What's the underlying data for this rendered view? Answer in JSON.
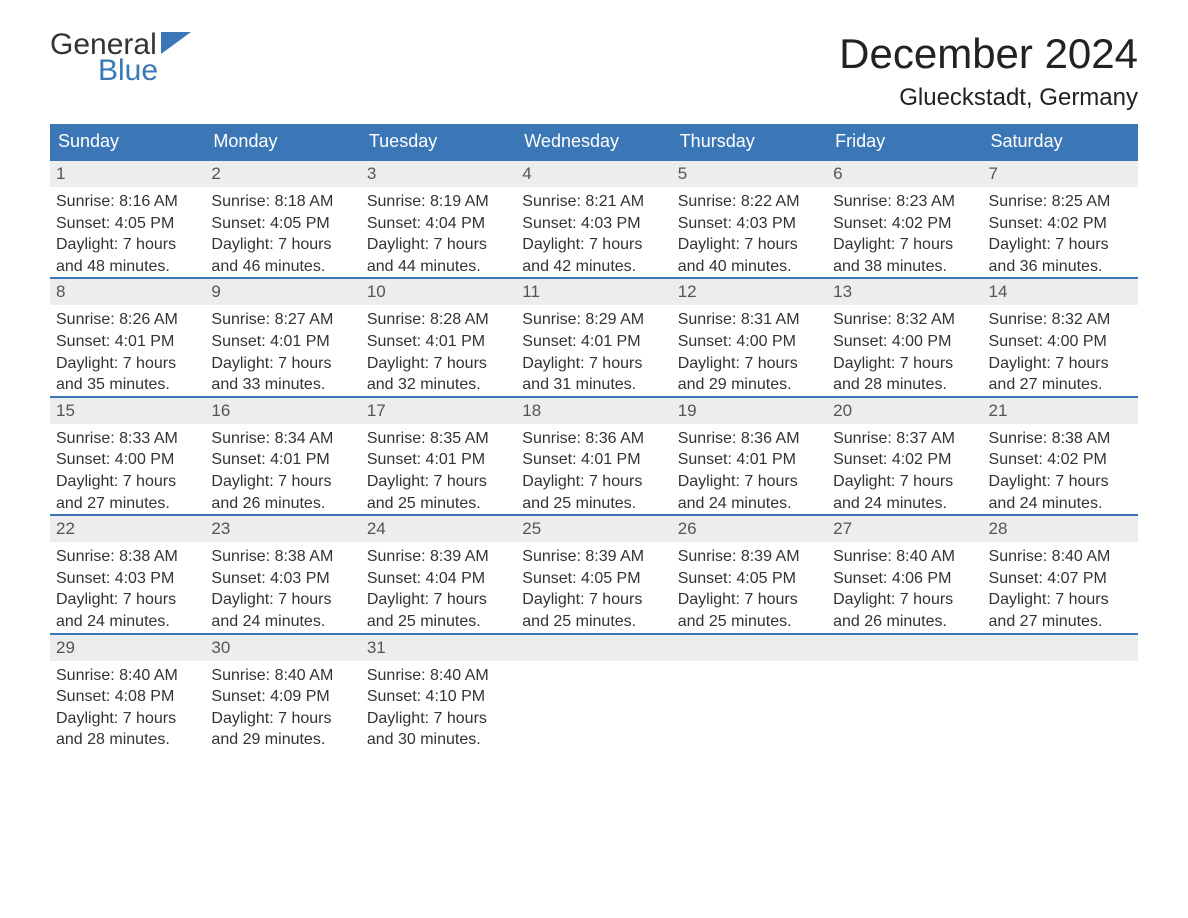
{
  "brand": {
    "general": "General",
    "blue": "Blue",
    "general_color": "#333333",
    "blue_color": "#3b77b7",
    "flag_color": "#3b77b7"
  },
  "title": "December 2024",
  "location": "Glueckstadt, Germany",
  "colors": {
    "header_bg": "#3b77b7",
    "header_text": "#ffffff",
    "day_border": "#3b77b7",
    "day_number_bg": "#ededed",
    "day_number_text": "#555555",
    "body_text": "#333333",
    "page_bg": "#ffffff"
  },
  "weekdays": [
    "Sunday",
    "Monday",
    "Tuesday",
    "Wednesday",
    "Thursday",
    "Friday",
    "Saturday"
  ],
  "weeks": [
    [
      {
        "n": "1",
        "sunrise": "Sunrise: 8:16 AM",
        "sunset": "Sunset: 4:05 PM",
        "day1": "Daylight: 7 hours",
        "day2": "and 48 minutes."
      },
      {
        "n": "2",
        "sunrise": "Sunrise: 8:18 AM",
        "sunset": "Sunset: 4:05 PM",
        "day1": "Daylight: 7 hours",
        "day2": "and 46 minutes."
      },
      {
        "n": "3",
        "sunrise": "Sunrise: 8:19 AM",
        "sunset": "Sunset: 4:04 PM",
        "day1": "Daylight: 7 hours",
        "day2": "and 44 minutes."
      },
      {
        "n": "4",
        "sunrise": "Sunrise: 8:21 AM",
        "sunset": "Sunset: 4:03 PM",
        "day1": "Daylight: 7 hours",
        "day2": "and 42 minutes."
      },
      {
        "n": "5",
        "sunrise": "Sunrise: 8:22 AM",
        "sunset": "Sunset: 4:03 PM",
        "day1": "Daylight: 7 hours",
        "day2": "and 40 minutes."
      },
      {
        "n": "6",
        "sunrise": "Sunrise: 8:23 AM",
        "sunset": "Sunset: 4:02 PM",
        "day1": "Daylight: 7 hours",
        "day2": "and 38 minutes."
      },
      {
        "n": "7",
        "sunrise": "Sunrise: 8:25 AM",
        "sunset": "Sunset: 4:02 PM",
        "day1": "Daylight: 7 hours",
        "day2": "and 36 minutes."
      }
    ],
    [
      {
        "n": "8",
        "sunrise": "Sunrise: 8:26 AM",
        "sunset": "Sunset: 4:01 PM",
        "day1": "Daylight: 7 hours",
        "day2": "and 35 minutes."
      },
      {
        "n": "9",
        "sunrise": "Sunrise: 8:27 AM",
        "sunset": "Sunset: 4:01 PM",
        "day1": "Daylight: 7 hours",
        "day2": "and 33 minutes."
      },
      {
        "n": "10",
        "sunrise": "Sunrise: 8:28 AM",
        "sunset": "Sunset: 4:01 PM",
        "day1": "Daylight: 7 hours",
        "day2": "and 32 minutes."
      },
      {
        "n": "11",
        "sunrise": "Sunrise: 8:29 AM",
        "sunset": "Sunset: 4:01 PM",
        "day1": "Daylight: 7 hours",
        "day2": "and 31 minutes."
      },
      {
        "n": "12",
        "sunrise": "Sunrise: 8:31 AM",
        "sunset": "Sunset: 4:00 PM",
        "day1": "Daylight: 7 hours",
        "day2": "and 29 minutes."
      },
      {
        "n": "13",
        "sunrise": "Sunrise: 8:32 AM",
        "sunset": "Sunset: 4:00 PM",
        "day1": "Daylight: 7 hours",
        "day2": "and 28 minutes."
      },
      {
        "n": "14",
        "sunrise": "Sunrise: 8:32 AM",
        "sunset": "Sunset: 4:00 PM",
        "day1": "Daylight: 7 hours",
        "day2": "and 27 minutes."
      }
    ],
    [
      {
        "n": "15",
        "sunrise": "Sunrise: 8:33 AM",
        "sunset": "Sunset: 4:00 PM",
        "day1": "Daylight: 7 hours",
        "day2": "and 27 minutes."
      },
      {
        "n": "16",
        "sunrise": "Sunrise: 8:34 AM",
        "sunset": "Sunset: 4:01 PM",
        "day1": "Daylight: 7 hours",
        "day2": "and 26 minutes."
      },
      {
        "n": "17",
        "sunrise": "Sunrise: 8:35 AM",
        "sunset": "Sunset: 4:01 PM",
        "day1": "Daylight: 7 hours",
        "day2": "and 25 minutes."
      },
      {
        "n": "18",
        "sunrise": "Sunrise: 8:36 AM",
        "sunset": "Sunset: 4:01 PM",
        "day1": "Daylight: 7 hours",
        "day2": "and 25 minutes."
      },
      {
        "n": "19",
        "sunrise": "Sunrise: 8:36 AM",
        "sunset": "Sunset: 4:01 PM",
        "day1": "Daylight: 7 hours",
        "day2": "and 24 minutes."
      },
      {
        "n": "20",
        "sunrise": "Sunrise: 8:37 AM",
        "sunset": "Sunset: 4:02 PM",
        "day1": "Daylight: 7 hours",
        "day2": "and 24 minutes."
      },
      {
        "n": "21",
        "sunrise": "Sunrise: 8:38 AM",
        "sunset": "Sunset: 4:02 PM",
        "day1": "Daylight: 7 hours",
        "day2": "and 24 minutes."
      }
    ],
    [
      {
        "n": "22",
        "sunrise": "Sunrise: 8:38 AM",
        "sunset": "Sunset: 4:03 PM",
        "day1": "Daylight: 7 hours",
        "day2": "and 24 minutes."
      },
      {
        "n": "23",
        "sunrise": "Sunrise: 8:38 AM",
        "sunset": "Sunset: 4:03 PM",
        "day1": "Daylight: 7 hours",
        "day2": "and 24 minutes."
      },
      {
        "n": "24",
        "sunrise": "Sunrise: 8:39 AM",
        "sunset": "Sunset: 4:04 PM",
        "day1": "Daylight: 7 hours",
        "day2": "and 25 minutes."
      },
      {
        "n": "25",
        "sunrise": "Sunrise: 8:39 AM",
        "sunset": "Sunset: 4:05 PM",
        "day1": "Daylight: 7 hours",
        "day2": "and 25 minutes."
      },
      {
        "n": "26",
        "sunrise": "Sunrise: 8:39 AM",
        "sunset": "Sunset: 4:05 PM",
        "day1": "Daylight: 7 hours",
        "day2": "and 25 minutes."
      },
      {
        "n": "27",
        "sunrise": "Sunrise: 8:40 AM",
        "sunset": "Sunset: 4:06 PM",
        "day1": "Daylight: 7 hours",
        "day2": "and 26 minutes."
      },
      {
        "n": "28",
        "sunrise": "Sunrise: 8:40 AM",
        "sunset": "Sunset: 4:07 PM",
        "day1": "Daylight: 7 hours",
        "day2": "and 27 minutes."
      }
    ],
    [
      {
        "n": "29",
        "sunrise": "Sunrise: 8:40 AM",
        "sunset": "Sunset: 4:08 PM",
        "day1": "Daylight: 7 hours",
        "day2": "and 28 minutes."
      },
      {
        "n": "30",
        "sunrise": "Sunrise: 8:40 AM",
        "sunset": "Sunset: 4:09 PM",
        "day1": "Daylight: 7 hours",
        "day2": "and 29 minutes."
      },
      {
        "n": "31",
        "sunrise": "Sunrise: 8:40 AM",
        "sunset": "Sunset: 4:10 PM",
        "day1": "Daylight: 7 hours",
        "day2": "and 30 minutes."
      },
      null,
      null,
      null,
      null
    ]
  ]
}
